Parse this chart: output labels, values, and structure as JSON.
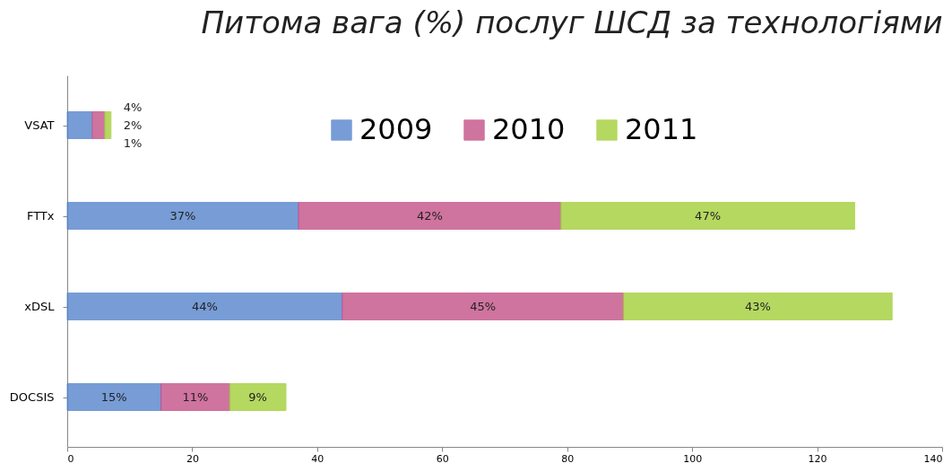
{
  "chart_data": {
    "type": "bar",
    "orientation": "horizontal",
    "stacked": true,
    "title": "Питома вага (%) послуг ШСД за технологіями",
    "categories": [
      "VSAT",
      "FTTx",
      "xDSL",
      "DOCSIS"
    ],
    "series": [
      {
        "name": "2009",
        "color": "#4a7cc9",
        "values": [
          4,
          37,
          44,
          15
        ],
        "value_labels": [
          "4%",
          "37%",
          "44%",
          "15%"
        ]
      },
      {
        "name": "2010",
        "color": "#c0457f",
        "values": [
          2,
          42,
          45,
          11
        ],
        "value_labels": [
          "2%",
          "42%",
          "45%",
          "11%"
        ]
      },
      {
        "name": "2011",
        "color": "#9ccc2c",
        "values": [
          1,
          47,
          43,
          9
        ],
        "value_labels": [
          "1%",
          "47%",
          "43%",
          "9%"
        ]
      }
    ],
    "xlim": [
      0,
      140
    ],
    "xticks": [
      0,
      20,
      40,
      60,
      80,
      100,
      120,
      140
    ],
    "grid": false,
    "legend": "top right"
  }
}
